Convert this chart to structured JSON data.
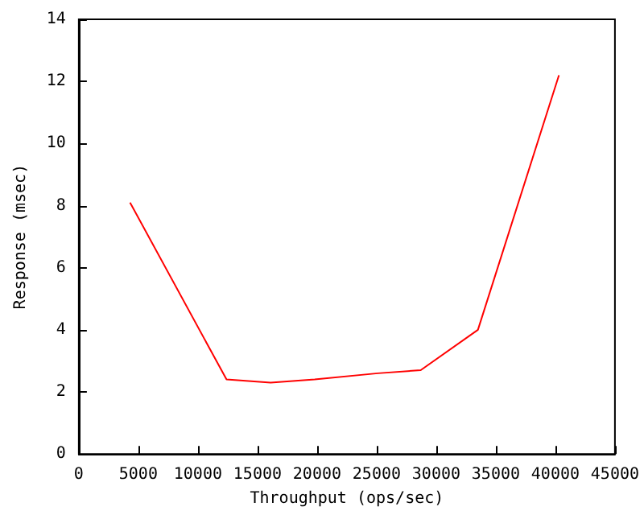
{
  "chart_data": {
    "type": "line",
    "xlabel": "Throughput (ops/sec)",
    "ylabel": "Response (msec)",
    "x": [
      4300,
      12400,
      16100,
      19800,
      25100,
      28700,
      33500,
      40300
    ],
    "series": [
      {
        "color": "#ff0000",
        "values": [
          8.1,
          2.4,
          2.3,
          2.4,
          2.6,
          2.7,
          4.0,
          12.2
        ]
      }
    ],
    "xlim": [
      0,
      45000
    ],
    "xticks": [
      0,
      5000,
      10000,
      15000,
      20000,
      25000,
      30000,
      35000,
      40000,
      45000
    ],
    "ylim": [
      0,
      14
    ],
    "yticks": [
      0,
      2,
      4,
      6,
      8,
      10,
      12,
      14
    ],
    "grid": false,
    "marker": "none",
    "line_style": "solid"
  }
}
